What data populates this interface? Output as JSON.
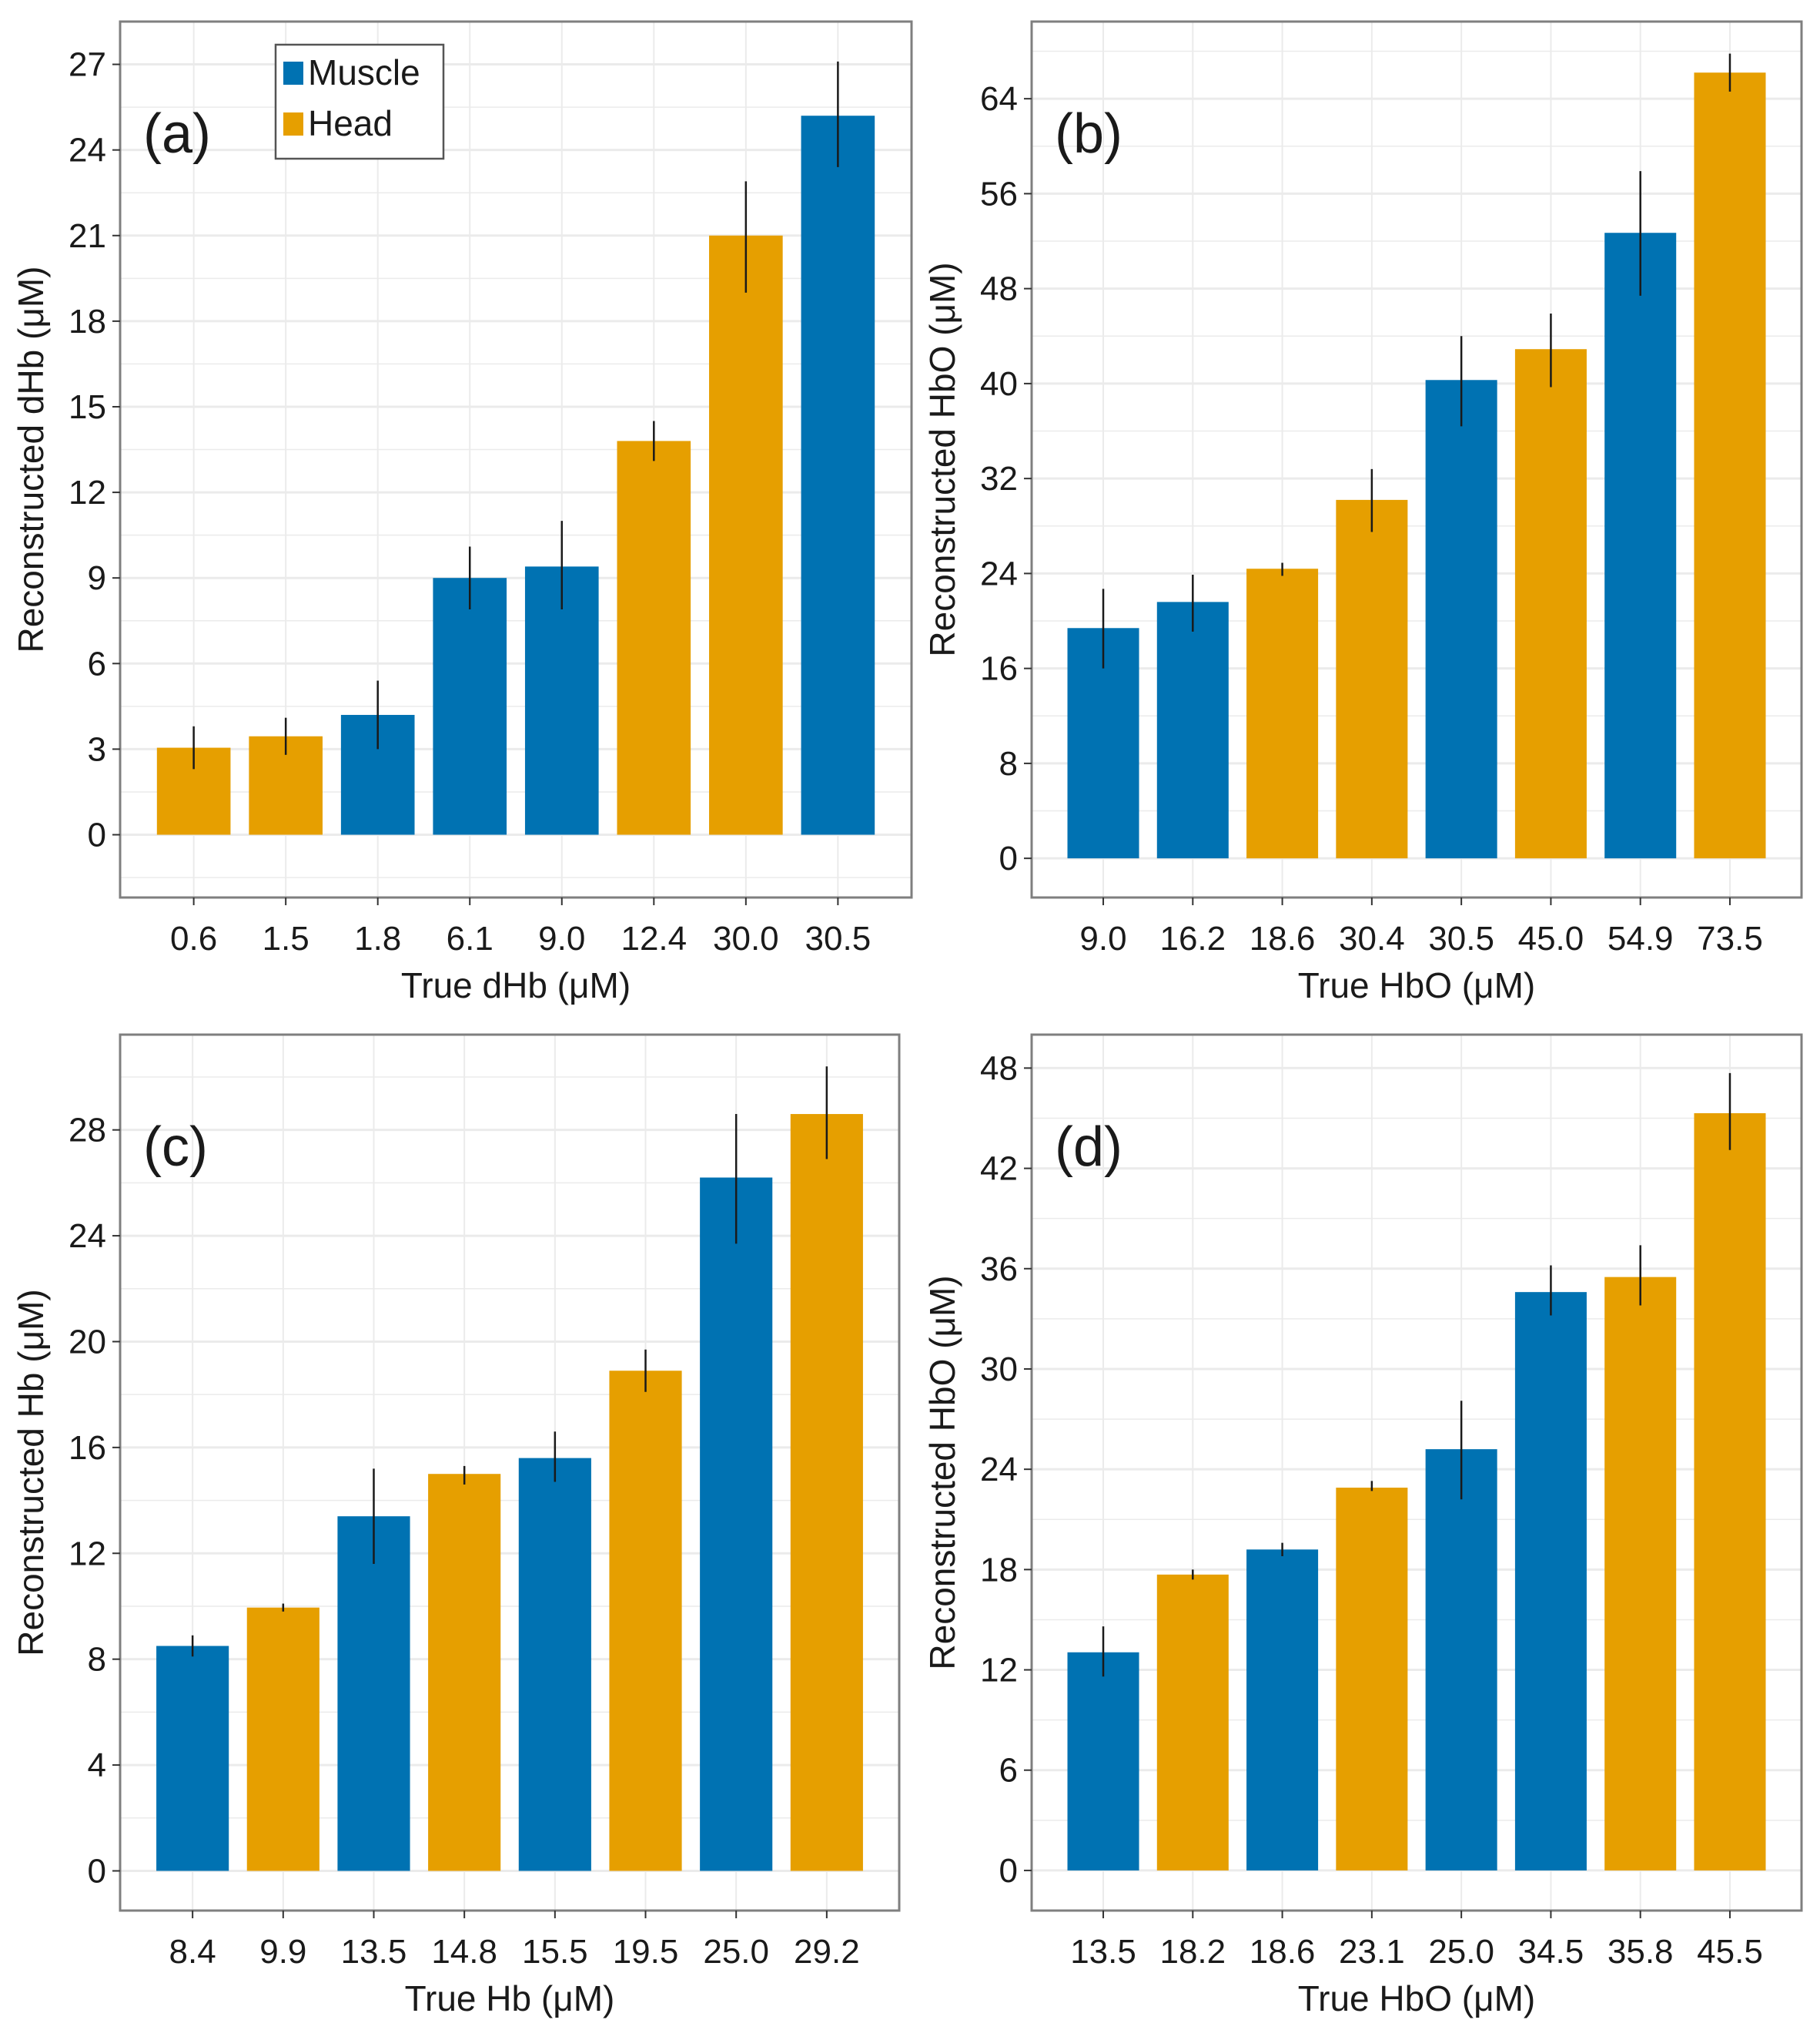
{
  "legend": {
    "items": [
      {
        "label": "Muscle",
        "color": "#0072b2"
      },
      {
        "label": "Head",
        "color": "#e69f00"
      }
    ]
  },
  "colors": {
    "Muscle": "#0072b2",
    "Head": "#e69f00",
    "error_bar": "#1a1a1a",
    "grid": "#ebebeb",
    "frame": "#7f7f7f"
  },
  "chart_data": [
    {
      "type": "bar",
      "panel_label": "(a)",
      "title": "",
      "xlabel": "True dHb (μM)",
      "ylabel": "Reconstructed dHb (μM)",
      "ylim": [
        -2.2,
        28.5
      ],
      "yticks": [
        0,
        3,
        6,
        9,
        12,
        15,
        18,
        21,
        24,
        27
      ],
      "grid": true,
      "legend": "top-left",
      "categories": [
        "0.6",
        "1.5",
        "1.8",
        "6.1",
        "9.0",
        "12.4",
        "30.0",
        "30.5"
      ],
      "groups": [
        "Head",
        "Head",
        "Muscle",
        "Muscle",
        "Muscle",
        "Head",
        "Head",
        "Muscle"
      ],
      "values": [
        3.05,
        3.45,
        4.2,
        9.0,
        9.4,
        13.8,
        21.0,
        25.2
      ],
      "error_low": [
        2.3,
        2.8,
        3.0,
        7.9,
        7.9,
        13.1,
        19.0,
        23.4
      ],
      "error_high": [
        3.8,
        4.1,
        5.4,
        10.1,
        11.0,
        14.5,
        22.9,
        27.1
      ]
    },
    {
      "type": "bar",
      "panel_label": "(b)",
      "title": "",
      "xlabel": "True HbO (μM)",
      "ylabel": "Reconstructed HbO (μM)",
      "ylim": [
        -3.3,
        70.5
      ],
      "yticks": [
        0,
        8,
        16,
        24,
        32,
        40,
        48,
        56,
        64
      ],
      "grid": true,
      "legend": "none",
      "categories": [
        "9.0",
        "16.2",
        "18.6",
        "30.4",
        "30.5",
        "45.0",
        "54.9",
        "73.5"
      ],
      "groups": [
        "Muscle",
        "Muscle",
        "Head",
        "Head",
        "Muscle",
        "Head",
        "Muscle",
        "Head"
      ],
      "values": [
        19.4,
        21.6,
        24.4,
        30.2,
        40.3,
        42.9,
        52.7,
        66.2
      ],
      "error_low": [
        16.0,
        19.1,
        23.8,
        27.5,
        36.4,
        39.7,
        47.4,
        64.6
      ],
      "error_high": [
        22.7,
        23.9,
        24.9,
        32.8,
        44.0,
        45.9,
        57.9,
        67.8
      ]
    },
    {
      "type": "bar",
      "panel_label": "(c)",
      "title": "",
      "xlabel": "True Hb (μM)",
      "ylabel": "Reconstructed Hb (μM)",
      "ylim": [
        -1.5,
        31.6
      ],
      "yticks": [
        0,
        4,
        8,
        12,
        16,
        20,
        24,
        28
      ],
      "grid": true,
      "legend": "none",
      "categories": [
        "8.4",
        "9.9",
        "13.5",
        "14.8",
        "15.5",
        "19.5",
        "25.0",
        "29.2"
      ],
      "groups": [
        "Muscle",
        "Head",
        "Muscle",
        "Head",
        "Muscle",
        "Head",
        "Muscle",
        "Head"
      ],
      "values": [
        8.5,
        9.95,
        13.4,
        15.0,
        15.6,
        18.9,
        26.2,
        28.6
      ],
      "error_low": [
        8.1,
        9.8,
        11.6,
        14.6,
        14.7,
        18.1,
        23.7,
        26.9
      ],
      "error_high": [
        8.9,
        10.1,
        15.2,
        15.3,
        16.6,
        19.7,
        28.6,
        30.4
      ]
    },
    {
      "type": "bar",
      "panel_label": "(d)",
      "title": "",
      "xlabel": "True HbO (μM)",
      "ylabel": "Reconstructed HbO (μM)",
      "ylim": [
        -2.4,
        50.0
      ],
      "yticks": [
        0,
        6,
        12,
        18,
        24,
        30,
        36,
        42,
        48
      ],
      "grid": true,
      "legend": "none",
      "categories": [
        "13.5",
        "18.2",
        "18.6",
        "23.1",
        "25.0",
        "34.5",
        "35.8",
        "45.5"
      ],
      "groups": [
        "Muscle",
        "Head",
        "Muscle",
        "Head",
        "Muscle",
        "Muscle",
        "Head",
        "Head"
      ],
      "values": [
        13.05,
        17.7,
        19.2,
        22.9,
        25.2,
        34.6,
        35.5,
        45.3
      ],
      "error_low": [
        11.6,
        17.4,
        18.8,
        22.7,
        22.2,
        33.2,
        33.8,
        43.1
      ],
      "error_high": [
        14.6,
        18.0,
        19.6,
        23.3,
        28.1,
        36.2,
        37.4,
        47.7
      ]
    }
  ]
}
